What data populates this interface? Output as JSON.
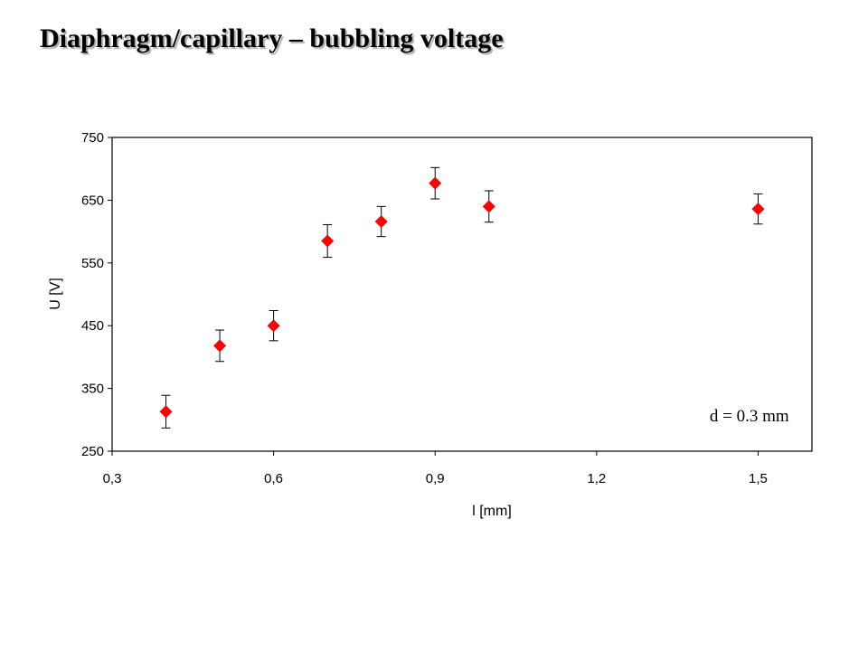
{
  "slide": {
    "title": "Diaphragm/capillary – bubbling voltage"
  },
  "chart_data": {
    "type": "scatter",
    "xlabel": "l [mm]",
    "ylabel": "U [V]",
    "xlim": [
      0.3,
      1.6
    ],
    "ylim": [
      250,
      750
    ],
    "x_ticks": [
      0.3,
      0.6,
      0.9,
      1.2,
      1.5
    ],
    "x_tick_labels": [
      "0,3",
      "0,6",
      "0,9",
      "1,2",
      "1,5"
    ],
    "y_ticks": [
      250,
      350,
      450,
      550,
      650,
      750
    ],
    "y_tick_labels": [
      "250",
      "350",
      "450",
      "550",
      "650",
      "750"
    ],
    "grid": false,
    "legend": "none",
    "marker": "diamond",
    "colors": {
      "marker": "#ff0000",
      "error_bar": "#000000",
      "frame": "#000000"
    },
    "series": [
      {
        "x": [
          0.4,
          0.5,
          0.6,
          0.7,
          0.8,
          0.9,
          1.0,
          1.5
        ],
        "y": [
          313,
          418,
          450,
          585,
          616,
          677,
          640,
          636
        ],
        "error": [
          26,
          25,
          24,
          26,
          24,
          25,
          25,
          24
        ]
      }
    ],
    "annotations": [
      {
        "text": "d = 0.3 mm",
        "x": 1.41,
        "y": 306
      }
    ]
  }
}
